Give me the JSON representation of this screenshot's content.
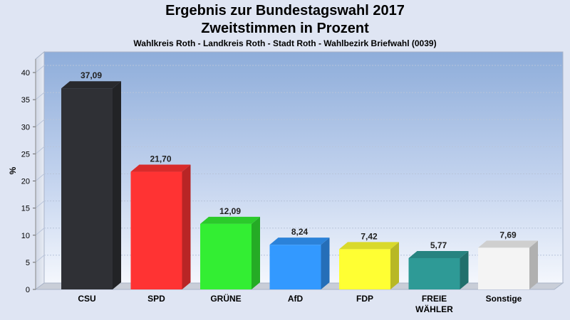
{
  "chart_data": {
    "type": "bar",
    "title": "Ergebnis zur Bundestagswahl 2017",
    "subtitle": "Zweitstimmen in Prozent",
    "caption": "Wahlkreis Roth - Landkreis Roth - Stadt Roth - Wahlbezirk Briefwahl (0039)",
    "xlabel": "",
    "ylabel": "%",
    "ylim": [
      0,
      40
    ],
    "yticks": [
      "0",
      "5",
      "10",
      "15",
      "20",
      "25",
      "30",
      "35",
      "40"
    ],
    "grid": true,
    "categories": [
      [
        "CSU"
      ],
      [
        "SPD"
      ],
      [
        "GRÜNE"
      ],
      [
        "AfD"
      ],
      [
        "FDP"
      ],
      [
        "FREIE",
        "WÄHLER"
      ],
      [
        "Sonstige"
      ]
    ],
    "values": [
      37.09,
      21.7,
      12.09,
      8.24,
      7.42,
      5.77,
      7.69
    ],
    "value_labels": [
      "37,09",
      "21,70",
      "12,09",
      "8,24",
      "7,42",
      "5,77",
      "7,69"
    ],
    "colors": [
      "#2f3035",
      "#ff3333",
      "#33ee33",
      "#3399ff",
      "#ffff33",
      "#2e9a96",
      "#f4f4f4"
    ]
  }
}
